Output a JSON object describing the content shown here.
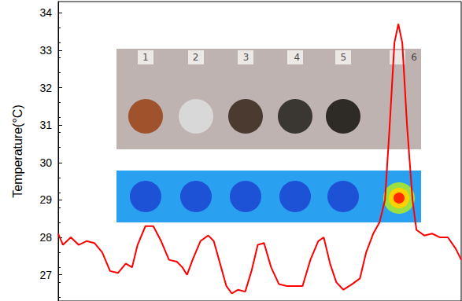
{
  "chart_data": {
    "type": "line",
    "y_label": "Temperature(°C)",
    "x": [
      0,
      6,
      16,
      26,
      36,
      46,
      56,
      66,
      76,
      86,
      94,
      101,
      111,
      121,
      131,
      141,
      151,
      158,
      164,
      171,
      181,
      191,
      198,
      206,
      214,
      221,
      229,
      238,
      246,
      254,
      262,
      271,
      281,
      291,
      301,
      311,
      321,
      331,
      338,
      346,
      354,
      363,
      374,
      384,
      392,
      401,
      409,
      416,
      422,
      428,
      433,
      438,
      444,
      451,
      456,
      466,
      476,
      486,
      496,
      506,
      513
    ],
    "values": [
      28.1,
      27.8,
      28.0,
      27.8,
      27.9,
      27.85,
      27.6,
      27.1,
      27.05,
      27.3,
      27.2,
      27.8,
      28.3,
      28.3,
      27.9,
      27.4,
      27.35,
      27.2,
      27.0,
      27.4,
      27.9,
      28.05,
      27.9,
      27.3,
      26.7,
      26.5,
      26.6,
      26.55,
      27.1,
      27.8,
      27.85,
      27.2,
      26.75,
      26.7,
      26.7,
      26.7,
      27.4,
      27.9,
      28.0,
      27.3,
      26.8,
      26.6,
      26.75,
      26.9,
      27.6,
      28.1,
      28.4,
      29.0,
      31.0,
      33.2,
      33.7,
      33.2,
      31.0,
      29.0,
      28.2,
      28.05,
      28.1,
      28.0,
      28.0,
      27.7,
      27.4
    ],
    "color": "#ff0000",
    "line_style": "solid",
    "xlim": [
      0,
      513
    ],
    "ylim": [
      26.3,
      34.3
    ],
    "yticks": [
      27,
      28,
      29,
      30,
      31,
      32,
      33,
      34
    ],
    "tick_labels": "y",
    "grid": false,
    "annotations": [
      {
        "text": "1",
        "x": 111,
        "y": 32.8
      },
      {
        "text": "2",
        "x": 175,
        "y": 32.8
      },
      {
        "text": "3",
        "x": 239,
        "y": 32.8
      },
      {
        "text": "4",
        "x": 304,
        "y": 32.8
      },
      {
        "text": "5",
        "x": 363,
        "y": 32.8
      },
      {
        "text": "6",
        "x": 453,
        "y": 32.8
      }
    ]
  }
}
